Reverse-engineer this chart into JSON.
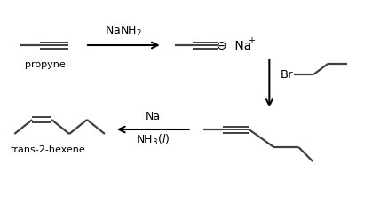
{
  "bg_color": "#ffffff",
  "line_color": "#404040",
  "text_color": "#000000",
  "arrow_color": "#000000",
  "fig_width": 4.19,
  "fig_height": 2.3,
  "dpi": 100,
  "propyne_label": "propyne",
  "reagent1": "NaNH$_2$",
  "reagent3_line1": "Na",
  "reagent3_line2": "NH$_3$($\\it{l}$)",
  "trans2hexene_label": "trans-2-hexene",
  "br_label": "Br"
}
